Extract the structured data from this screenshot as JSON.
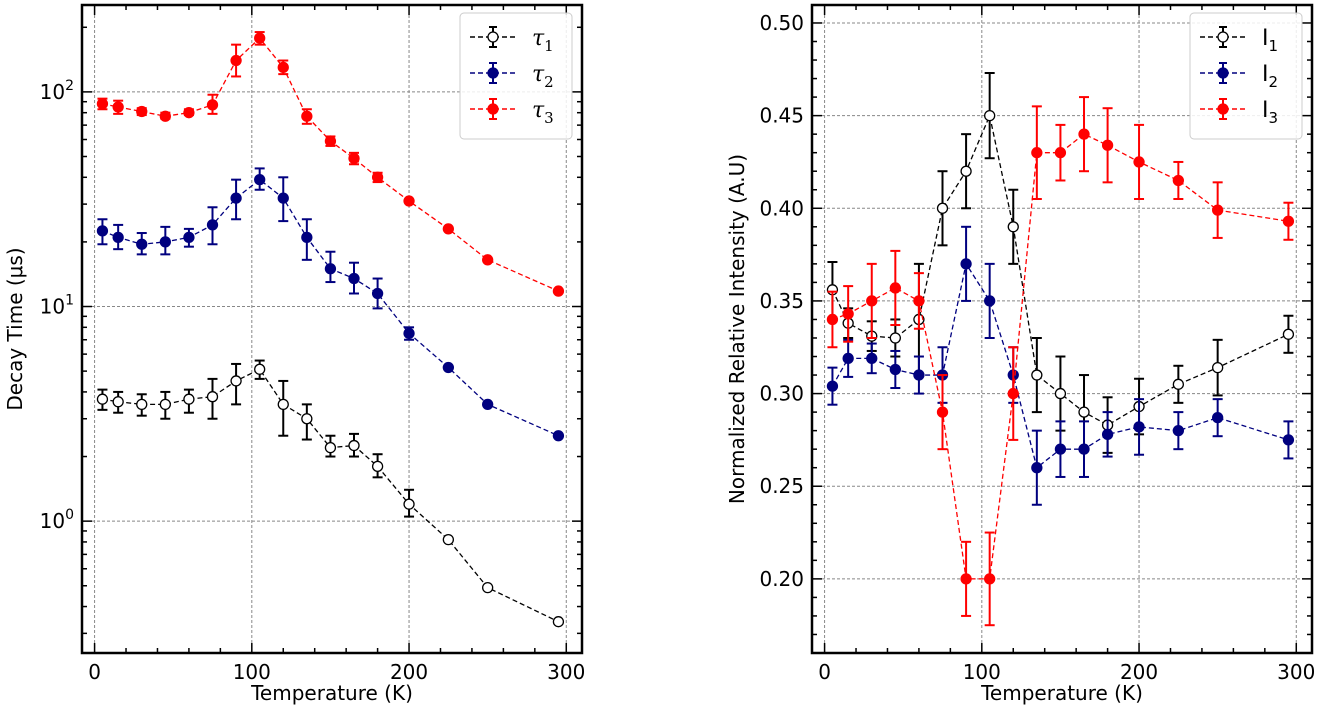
{
  "chart_data": [
    {
      "type": "line",
      "title": "",
      "xlabel": "Temperature (K)",
      "ylabel": "Decay Time (μs)",
      "yscale": "log",
      "xlim": [
        -8,
        310
      ],
      "ylim": [
        0.243,
        254
      ],
      "xticks": [
        0,
        100,
        200,
        300
      ],
      "xtick_labels": [
        "0",
        "100",
        "200",
        "300"
      ],
      "yticks": [
        1,
        10,
        100
      ],
      "ytick_labels": [
        {
          "base": "10",
          "exp": "0"
        },
        {
          "base": "10",
          "exp": "1"
        },
        {
          "base": "10",
          "exp": "2"
        }
      ],
      "grid": true,
      "legend_position": "top-right",
      "x": [
        5,
        15,
        30,
        45,
        60,
        75,
        90,
        105,
        120,
        135,
        150,
        165,
        180,
        200,
        225,
        250,
        295
      ],
      "series": [
        {
          "name": "τ1",
          "label_main": "τ",
          "label_sub": "1",
          "color": "#000000",
          "marker": "open-circle",
          "values": [
            3.7,
            3.6,
            3.5,
            3.5,
            3.7,
            3.8,
            4.5,
            5.1,
            3.5,
            3.0,
            2.2,
            2.25,
            1.8,
            1.2,
            0.82,
            0.49,
            0.34
          ],
          "err_low": [
            3.3,
            3.2,
            3.1,
            3.0,
            3.2,
            3.0,
            3.5,
            4.6,
            2.5,
            2.4,
            2.0,
            2.0,
            1.6,
            1.05,
            0.82,
            0.49,
            0.34
          ],
          "err_high": [
            4.1,
            4.0,
            3.9,
            4.0,
            4.1,
            4.6,
            5.4,
            5.6,
            4.5,
            3.5,
            2.5,
            2.55,
            2.05,
            1.4,
            0.82,
            0.49,
            0.34
          ]
        },
        {
          "name": "τ2",
          "label_main": "τ",
          "label_sub": "2",
          "color": "#00007f",
          "marker": "filled-circle",
          "values": [
            22.5,
            21,
            19.5,
            20,
            21,
            24,
            32,
            39,
            32,
            21,
            15,
            13.5,
            11.5,
            7.5,
            5.2,
            3.5,
            2.5
          ],
          "err_low": [
            19.5,
            18.5,
            17.5,
            17.5,
            19,
            19.5,
            25.5,
            35,
            25,
            16.5,
            13,
            11.5,
            9.8,
            7.0,
            5.2,
            3.5,
            2.5
          ],
          "err_high": [
            25.5,
            24,
            22,
            23.5,
            23,
            29,
            39,
            44,
            40,
            25.5,
            18,
            16,
            13.5,
            8.0,
            5.2,
            3.5,
            2.5
          ]
        },
        {
          "name": "τ3",
          "label_main": "τ",
          "label_sub": "3",
          "color": "#ff0000",
          "marker": "filled-circle",
          "values": [
            88,
            85,
            81,
            77,
            80,
            87,
            140,
            178,
            130,
            77,
            59,
            49,
            40,
            31,
            23,
            16.5,
            11.8
          ],
          "err_low": [
            83,
            79,
            78,
            75,
            78,
            79,
            118,
            166,
            121,
            71,
            56,
            46,
            38,
            31,
            23,
            16.5,
            11.8
          ],
          "err_high": [
            93,
            91,
            84,
            80,
            83,
            97,
            166,
            190,
            140,
            83,
            62,
            52,
            42,
            31,
            23,
            16.5,
            11.8
          ]
        }
      ]
    },
    {
      "type": "line",
      "title": "",
      "xlabel": "Temperature (K)",
      "ylabel": "Normalized Relative Intensity (A.U)",
      "yscale": "linear",
      "xlim": [
        -8,
        310
      ],
      "ylim": [
        0.16,
        0.5097
      ],
      "xticks": [
        0,
        100,
        200,
        300
      ],
      "xtick_labels": [
        "0",
        "100",
        "200",
        "300"
      ],
      "yticks": [
        0.2,
        0.25,
        0.3,
        0.35,
        0.4,
        0.45,
        0.5
      ],
      "ytick_labels": [
        "0.20",
        "0.25",
        "0.30",
        "0.35",
        "0.40",
        "0.45",
        "0.50"
      ],
      "grid": true,
      "legend_position": "top-right",
      "x": [
        5,
        15,
        30,
        45,
        60,
        75,
        90,
        105,
        120,
        135,
        150,
        165,
        180,
        200,
        225,
        250,
        295
      ],
      "series": [
        {
          "name": "I1",
          "label_main": "I",
          "label_sub": "1",
          "color": "#000000",
          "marker": "open-circle",
          "values": [
            0.356,
            0.338,
            0.331,
            0.33,
            0.34,
            0.4,
            0.42,
            0.45,
            0.39,
            0.31,
            0.3,
            0.29,
            0.283,
            0.293,
            0.305,
            0.314,
            0.332
          ],
          "err": [
            0.015,
            0.008,
            0.008,
            0.01,
            0.03,
            0.02,
            0.02,
            0.023,
            0.02,
            0.02,
            0.02,
            0.02,
            0.015,
            0.015,
            0.01,
            0.015,
            0.01
          ]
        },
        {
          "name": "I2",
          "label_main": "I",
          "label_sub": "2",
          "color": "#00007f",
          "marker": "filled-circle",
          "values": [
            0.304,
            0.319,
            0.319,
            0.313,
            0.31,
            0.31,
            0.37,
            0.35,
            0.31,
            0.26,
            0.27,
            0.27,
            0.278,
            0.282,
            0.28,
            0.287,
            0.275
          ],
          "err": [
            0.01,
            0.01,
            0.008,
            0.01,
            0.01,
            0.015,
            0.02,
            0.02,
            0.015,
            0.02,
            0.015,
            0.015,
            0.012,
            0.015,
            0.01,
            0.01,
            0.01
          ]
        },
        {
          "name": "I3",
          "label_main": "I",
          "label_sub": "3",
          "color": "#ff0000",
          "marker": "filled-circle",
          "values": [
            0.34,
            0.343,
            0.35,
            0.357,
            0.35,
            0.29,
            0.2,
            0.2,
            0.3,
            0.43,
            0.43,
            0.44,
            0.434,
            0.425,
            0.415,
            0.399,
            0.393
          ],
          "err": [
            0.015,
            0.015,
            0.02,
            0.02,
            0.015,
            0.02,
            0.02,
            0.025,
            0.025,
            0.025,
            0.015,
            0.02,
            0.02,
            0.02,
            0.01,
            0.015,
            0.01
          ]
        }
      ]
    }
  ]
}
